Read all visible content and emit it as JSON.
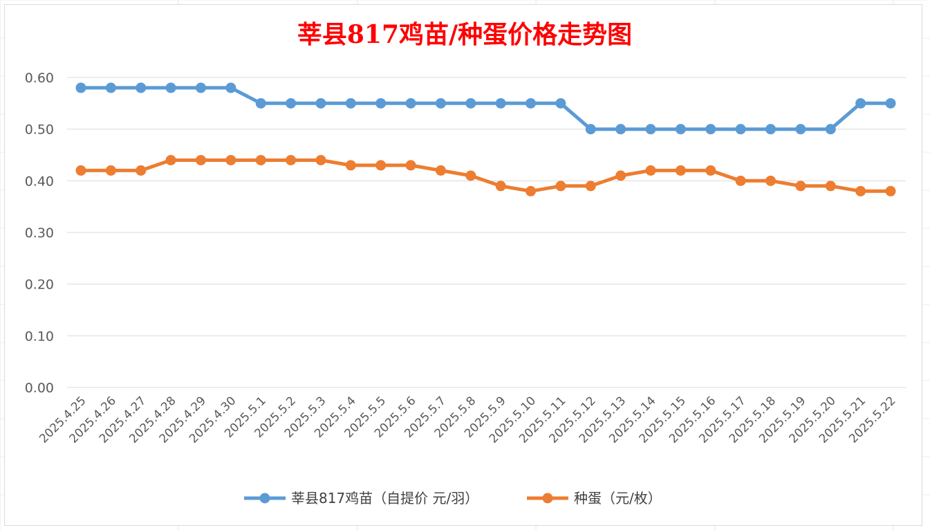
{
  "chart_data": {
    "type": "line",
    "title": "莘县817鸡苗/种蛋价格走势图",
    "categories": [
      "2025.4.25",
      "2025.4.26",
      "2025.4.27",
      "2025.4.28",
      "2025.4.29",
      "2025.4.30",
      "2025.5.1",
      "2025.5.2",
      "2025.5.3",
      "2025.5.4",
      "2025.5.5",
      "2025.5.6",
      "2025.5.7",
      "2025.5.8",
      "2025.5.9",
      "2025.5.10",
      "2025.5.11",
      "2025.5.12",
      "2025.5.13",
      "2025.5.14",
      "2025.5.15",
      "2025.5.16",
      "2025.5.17",
      "2025.5.18",
      "2025.5.19",
      "2025.5.20",
      "2025.5.21",
      "2025.5.22"
    ],
    "series": [
      {
        "name": "莘县817鸡苗（自提价 元/羽）",
        "color": "#5b9bd5",
        "values": [
          0.58,
          0.58,
          0.58,
          0.58,
          0.58,
          0.58,
          0.55,
          0.55,
          0.55,
          0.55,
          0.55,
          0.55,
          0.55,
          0.55,
          0.55,
          0.55,
          0.55,
          0.5,
          0.5,
          0.5,
          0.5,
          0.5,
          0.5,
          0.5,
          0.5,
          0.5,
          0.55,
          0.55
        ]
      },
      {
        "name": "种蛋（元/枚）",
        "color": "#ed7d31",
        "values": [
          0.42,
          0.42,
          0.42,
          0.44,
          0.44,
          0.44,
          0.44,
          0.44,
          0.44,
          0.43,
          0.43,
          0.43,
          0.42,
          0.41,
          0.39,
          0.38,
          0.39,
          0.39,
          0.41,
          0.42,
          0.42,
          0.42,
          0.4,
          0.4,
          0.39,
          0.39,
          0.38,
          0.38
        ]
      }
    ],
    "y_ticks": [
      "0.00",
      "0.10",
      "0.20",
      "0.30",
      "0.40",
      "0.50",
      "0.60"
    ],
    "ylim": [
      0,
      0.6
    ],
    "grid": true,
    "legend_position": "bottom",
    "xlabel": "",
    "ylabel": ""
  }
}
